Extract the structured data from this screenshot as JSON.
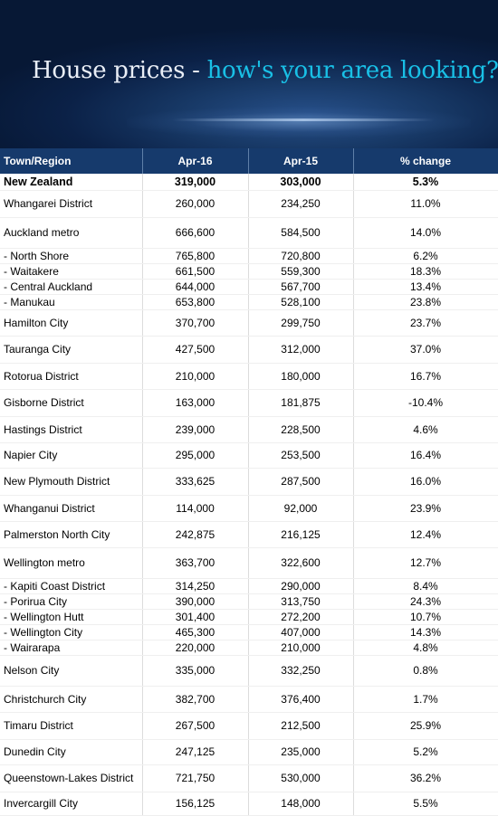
{
  "banner": {
    "title_part1": "House prices - ",
    "title_part2": "how's your area looking?"
  },
  "table": {
    "columns": [
      "Town/Region",
      "Apr-16",
      "Apr-15",
      "% change"
    ],
    "rows": [
      [
        "New Zealand",
        "319,000",
        "303,000",
        "5.3%"
      ],
      [
        "Whangarei District",
        "260,000",
        "234,250",
        "11.0%"
      ],
      [
        "Auckland metro",
        "666,600",
        "584,500",
        "14.0%"
      ],
      [
        " - North Shore",
        "765,800",
        "720,800",
        "6.2%"
      ],
      [
        " - Waitakere",
        "661,500",
        "559,300",
        "18.3%"
      ],
      [
        " - Central Auckland",
        "644,000",
        "567,700",
        "13.4%"
      ],
      [
        " - Manukau",
        "653,800",
        "528,100",
        "23.8%"
      ],
      [
        "Hamilton City",
        "370,700",
        "299,750",
        "23.7%"
      ],
      [
        "Tauranga City",
        "427,500",
        "312,000",
        "37.0%"
      ],
      [
        "Rotorua District",
        "210,000",
        "180,000",
        "16.7%"
      ],
      [
        "Gisborne District",
        "163,000",
        "181,875",
        "-10.4%"
      ],
      [
        "Hastings District",
        "239,000",
        "228,500",
        "4.6%"
      ],
      [
        "Napier City",
        "295,000",
        "253,500",
        "16.4%"
      ],
      [
        "New Plymouth District",
        "333,625",
        "287,500",
        "16.0%"
      ],
      [
        "Whanganui District",
        "114,000",
        "92,000",
        "23.9%"
      ],
      [
        "Palmerston North City",
        "242,875",
        "216,125",
        "12.4%"
      ],
      [
        "Wellington metro",
        "363,700",
        "322,600",
        "12.7%"
      ],
      [
        " - Kapiti Coast District",
        "314,250",
        "290,000",
        "8.4%"
      ],
      [
        " - Porirua City",
        "390,000",
        "313,750",
        "24.3%"
      ],
      [
        " - Wellington Hutt",
        "301,400",
        "272,200",
        "10.7%"
      ],
      [
        " - Wellington City",
        "465,300",
        "407,000",
        "14.3%"
      ],
      [
        " - Wairarapa",
        "220,000",
        "210,000",
        "4.8%"
      ],
      [
        "Nelson City",
        "335,000",
        "332,250",
        "0.8%"
      ],
      [
        "Christchurch City",
        "382,700",
        "376,400",
        "1.7%"
      ],
      [
        "Timaru District",
        "267,500",
        "212,500",
        "25.9%"
      ],
      [
        "Dunedin City",
        "247,125",
        "235,000",
        "5.2%"
      ],
      [
        "Queenstown-Lakes District",
        "721,750",
        "530,000",
        "36.2%"
      ],
      [
        "Invercargill City",
        "156,125",
        "148,000",
        "5.5%"
      ]
    ]
  }
}
